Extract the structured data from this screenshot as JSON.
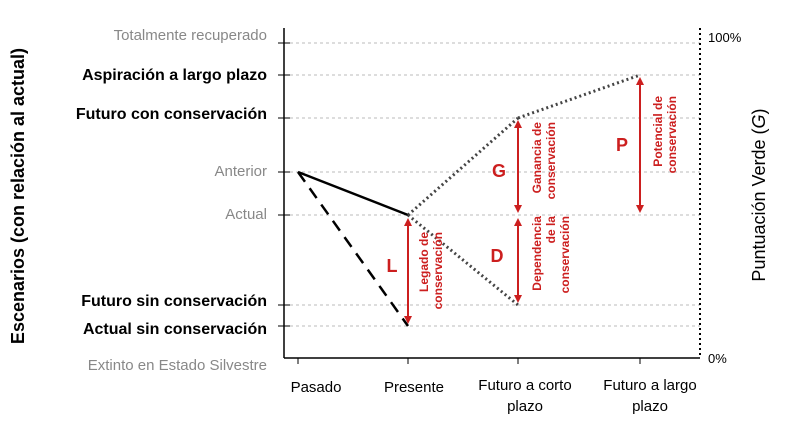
{
  "scenarios": {
    "fully_recovered": "Totalmente recuperado",
    "long_term_aspiration": "Aspiración a largo plazo",
    "future_with_conservation": "Futuro con conservación",
    "former": "Anterior",
    "current": "Actual",
    "future_without_conservation": "Futuro sin conservación",
    "current_without_conservation": "Actual sin conservación",
    "extinct_in_wild": "Extinto en Estado Silvestre"
  },
  "time_points": {
    "past": "Pasado",
    "present": "Presente",
    "short_term_future_1": "Futuro a corto",
    "short_term_future_2": "plazo",
    "long_term_future_1": "Futuro a largo",
    "long_term_future_2": "plazo"
  },
  "left_axis_title": "Escenarios (con relación al actual)",
  "right_axis": {
    "title_prefix": "Puntuación Verde (",
    "title_symbol": "G",
    "title_suffix": ")",
    "max_label": "100%",
    "min_label": "0%"
  },
  "measures": {
    "legacy": {
      "letter": "L",
      "line1": "Legado de",
      "line2": "conservación"
    },
    "dependence": {
      "letter": "D",
      "line1": "Dependencia",
      "line2": "de la",
      "line3": "conservación"
    },
    "gain": {
      "letter": "G",
      "line1": "Ganancia de",
      "line2": "conservación"
    },
    "potential": {
      "letter": "P",
      "line1": "Potencial de",
      "line2": "conservación"
    }
  },
  "colors": {
    "accent_red": "#cc1f1f",
    "grid": "#bbbbbb",
    "gray_label": "#888888"
  }
}
